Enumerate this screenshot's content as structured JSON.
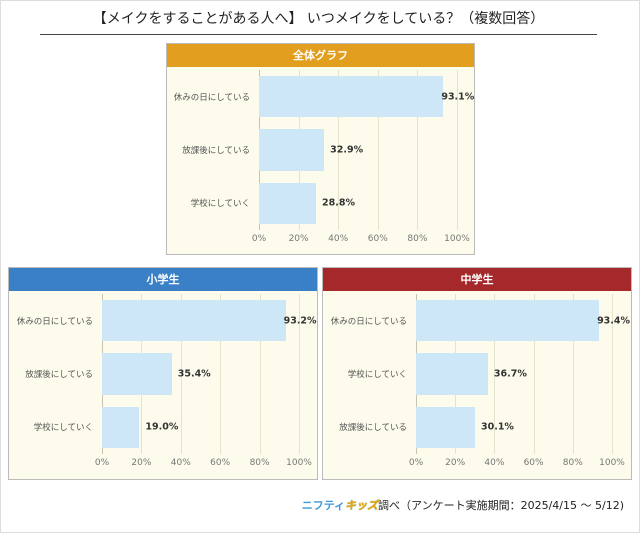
{
  "title": "【メイクをすることがある人へ】 いつメイクをしている？（複数回答）",
  "footer": {
    "brand1": "ニフティ",
    "brand2": "キッズ",
    "text": "調べ（アンケート実施期間：2025/4/15 ～ 5/12)"
  },
  "chart_data": [
    {
      "type": "bar",
      "title": "全体グラフ",
      "header_color": "#E29E1E",
      "categories": [
        "休みの日にしている",
        "放課後にしている",
        "学校にしていく"
      ],
      "values": [
        93.1,
        32.9,
        28.8
      ],
      "labels": [
        "93.1%",
        "32.9%",
        "28.8%"
      ],
      "xlim": [
        0,
        100
      ],
      "ticks": [
        "0%",
        "20%",
        "40%",
        "60%",
        "80%",
        "100%"
      ],
      "grid": true
    },
    {
      "type": "bar",
      "title": "小学生",
      "header_color": "#3A80C6",
      "categories": [
        "休みの日にしている",
        "放課後にしている",
        "学校にしていく"
      ],
      "values": [
        93.2,
        35.4,
        19.0
      ],
      "labels": [
        "93.2%",
        "35.4%",
        "19.0%"
      ],
      "xlim": [
        0,
        100
      ],
      "ticks": [
        "0%",
        "20%",
        "40%",
        "60%",
        "80%",
        "100%"
      ],
      "grid": true
    },
    {
      "type": "bar",
      "title": "中学生",
      "header_color": "#A5282B",
      "categories": [
        "休みの日にしている",
        "学校にしていく",
        "放課後にしている"
      ],
      "values": [
        93.4,
        36.7,
        30.1
      ],
      "labels": [
        "93.4%",
        "36.7%",
        "30.1%"
      ],
      "xlim": [
        0,
        100
      ],
      "ticks": [
        "0%",
        "20%",
        "40%",
        "60%",
        "80%",
        "100%"
      ],
      "grid": true
    }
  ]
}
